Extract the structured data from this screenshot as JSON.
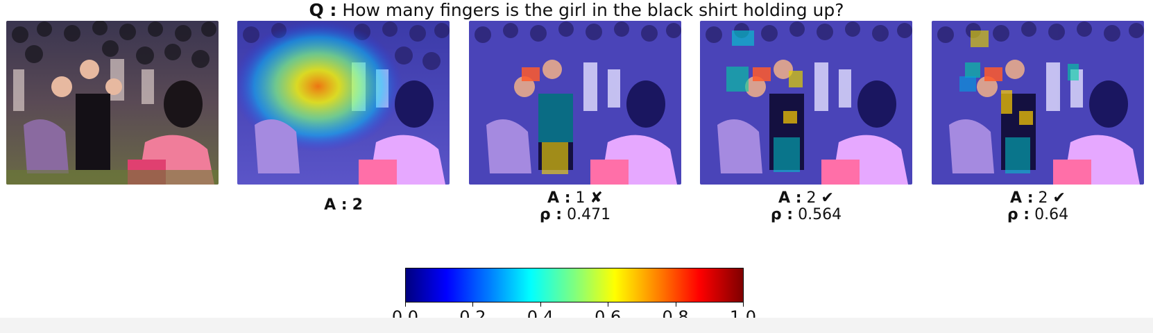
{
  "question": {
    "prefix": "Q :",
    "text": "How many fingers is the girl in the black shirt holding up?"
  },
  "panels": [
    {
      "id": "original",
      "overlay": "none",
      "answer_label": "",
      "answer": "",
      "correct_mark": "",
      "rho_label": "",
      "rho": ""
    },
    {
      "id": "heatmap",
      "overlay": "heatmap",
      "answer_label": "A :",
      "answer": "2",
      "correct_mark": "",
      "rho_label": "",
      "rho": ""
    },
    {
      "id": "regions-1",
      "overlay": "regions",
      "answer_label": "A :",
      "answer": "1",
      "correct_mark": "✘",
      "rho_label": "ρ :",
      "rho": "0.471"
    },
    {
      "id": "regions-2",
      "overlay": "regions",
      "answer_label": "A :",
      "answer": "2",
      "correct_mark": "✔",
      "rho_label": "ρ :",
      "rho": "0.564"
    },
    {
      "id": "regions-3",
      "overlay": "regions",
      "answer_label": "A :",
      "answer": "2",
      "correct_mark": "✔",
      "rho_label": "ρ :",
      "rho": "0.64"
    }
  ],
  "colorbar": {
    "colormap": "jet",
    "ticks": [
      "0.0",
      "0.2",
      "0.4",
      "0.6",
      "0.8",
      "1.0"
    ],
    "range": [
      0.0,
      1.0
    ]
  }
}
